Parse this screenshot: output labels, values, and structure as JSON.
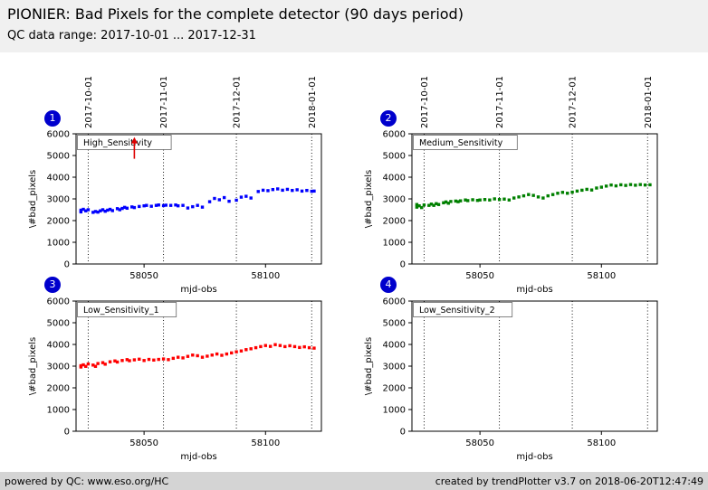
{
  "header": {
    "title": "PIONIER: Bad Pixels for the complete detector (90 days period)",
    "subtitle": "QC data range: 2017-10-01 ... 2017-12-31"
  },
  "footer": {
    "left": "powered by QC: www.eso.org/HC",
    "right": "created by trendPlotter v3.7 on 2018-06-20T12:47:49"
  },
  "chart_data": {
    "type": "scatter",
    "xlabel": "mjd-obs",
    "ylabel": "\\#bad_pixels",
    "xlim": [
      58022,
      58123
    ],
    "ylim": [
      0,
      6000
    ],
    "xticks": [
      58050,
      58100
    ],
    "yticks": [
      0,
      1000,
      2000,
      3000,
      4000,
      5000,
      6000
    ],
    "grid": "vertical dotted lines at month boundaries",
    "legend_position": "upper-left inside box",
    "date_lines": [
      {
        "mjd": 58027,
        "label": "2017-10-01"
      },
      {
        "mjd": 58058,
        "label": "2017-11-01"
      },
      {
        "mjd": 58088,
        "label": "2017-12-01"
      },
      {
        "mjd": 58119,
        "label": "2018-01-01"
      }
    ],
    "panels": [
      {
        "badge": "1",
        "name": "High_Sensitivity",
        "color": "#0000ff",
        "annotation": {
          "type": "up-arrow",
          "x": 58046,
          "y_from": 4850,
          "y_to": 5850,
          "color": "#dd0000"
        },
        "points": [
          [
            58024,
            2480
          ],
          [
            58024,
            2400
          ],
          [
            58025,
            2520
          ],
          [
            58026,
            2450
          ],
          [
            58027,
            2500
          ],
          [
            58029,
            2380
          ],
          [
            58030,
            2420
          ],
          [
            58031,
            2390
          ],
          [
            58032,
            2450
          ],
          [
            58033,
            2500
          ],
          [
            58034,
            2430
          ],
          [
            58035,
            2480
          ],
          [
            58036,
            2520
          ],
          [
            58037,
            2460
          ],
          [
            58039,
            2550
          ],
          [
            58040,
            2500
          ],
          [
            58041,
            2560
          ],
          [
            58042,
            2610
          ],
          [
            58043,
            2570
          ],
          [
            58045,
            2630
          ],
          [
            58046,
            2600
          ],
          [
            58048,
            2650
          ],
          [
            58050,
            2680
          ],
          [
            58051,
            2700
          ],
          [
            58053,
            2660
          ],
          [
            58055,
            2700
          ],
          [
            58056,
            2720
          ],
          [
            58058,
            2690
          ],
          [
            58059,
            2710
          ],
          [
            58061,
            2700
          ],
          [
            58063,
            2720
          ],
          [
            58064,
            2680
          ],
          [
            58066,
            2700
          ],
          [
            58068,
            2580
          ],
          [
            58070,
            2640
          ],
          [
            58072,
            2700
          ],
          [
            58074,
            2620
          ],
          [
            58077,
            2870
          ],
          [
            58079,
            3020
          ],
          [
            58081,
            2960
          ],
          [
            58083,
            3060
          ],
          [
            58085,
            2890
          ],
          [
            58088,
            2940
          ],
          [
            58090,
            3080
          ],
          [
            58092,
            3120
          ],
          [
            58094,
            3040
          ],
          [
            58097,
            3340
          ],
          [
            58099,
            3400
          ],
          [
            58101,
            3380
          ],
          [
            58103,
            3430
          ],
          [
            58105,
            3460
          ],
          [
            58107,
            3400
          ],
          [
            58109,
            3440
          ],
          [
            58111,
            3390
          ],
          [
            58113,
            3420
          ],
          [
            58115,
            3360
          ],
          [
            58117,
            3390
          ],
          [
            58119,
            3350
          ],
          [
            58120,
            3360
          ]
        ]
      },
      {
        "badge": "2",
        "name": "Medium_Sensitivity",
        "color": "#008000",
        "annotation": null,
        "points": [
          [
            58024,
            2620
          ],
          [
            58024,
            2740
          ],
          [
            58025,
            2680
          ],
          [
            58026,
            2600
          ],
          [
            58027,
            2720
          ],
          [
            58029,
            2700
          ],
          [
            58030,
            2760
          ],
          [
            58031,
            2700
          ],
          [
            58032,
            2780
          ],
          [
            58033,
            2740
          ],
          [
            58035,
            2820
          ],
          [
            58036,
            2860
          ],
          [
            58037,
            2800
          ],
          [
            58038,
            2880
          ],
          [
            58040,
            2900
          ],
          [
            58041,
            2870
          ],
          [
            58042,
            2910
          ],
          [
            58044,
            2950
          ],
          [
            58045,
            2920
          ],
          [
            58047,
            2960
          ],
          [
            58049,
            2930
          ],
          [
            58050,
            2950
          ],
          [
            58052,
            2970
          ],
          [
            58054,
            2950
          ],
          [
            58056,
            3000
          ],
          [
            58058,
            2970
          ],
          [
            58060,
            2990
          ],
          [
            58062,
            2950
          ],
          [
            58064,
            3040
          ],
          [
            58066,
            3090
          ],
          [
            58068,
            3140
          ],
          [
            58070,
            3200
          ],
          [
            58072,
            3160
          ],
          [
            58074,
            3090
          ],
          [
            58076,
            3040
          ],
          [
            58078,
            3140
          ],
          [
            58080,
            3200
          ],
          [
            58082,
            3260
          ],
          [
            58084,
            3300
          ],
          [
            58086,
            3260
          ],
          [
            58088,
            3310
          ],
          [
            58090,
            3360
          ],
          [
            58092,
            3400
          ],
          [
            58094,
            3440
          ],
          [
            58096,
            3410
          ],
          [
            58098,
            3500
          ],
          [
            58100,
            3540
          ],
          [
            58102,
            3590
          ],
          [
            58104,
            3640
          ],
          [
            58106,
            3600
          ],
          [
            58108,
            3650
          ],
          [
            58110,
            3620
          ],
          [
            58112,
            3660
          ],
          [
            58114,
            3630
          ],
          [
            58116,
            3660
          ],
          [
            58118,
            3640
          ],
          [
            58120,
            3650
          ]
        ]
      },
      {
        "badge": "3",
        "name": "Low_Sensitivity_1",
        "color": "#ff0000",
        "annotation": null,
        "points": [
          [
            58024,
            3020
          ],
          [
            58024,
            2960
          ],
          [
            58025,
            3060
          ],
          [
            58026,
            2990
          ],
          [
            58027,
            3100
          ],
          [
            58029,
            3050
          ],
          [
            58030,
            2990
          ],
          [
            58031,
            3120
          ],
          [
            58033,
            3160
          ],
          [
            58034,
            3090
          ],
          [
            58036,
            3200
          ],
          [
            58038,
            3240
          ],
          [
            58039,
            3190
          ],
          [
            58041,
            3260
          ],
          [
            58043,
            3300
          ],
          [
            58044,
            3250
          ],
          [
            58046,
            3290
          ],
          [
            58048,
            3320
          ],
          [
            58050,
            3260
          ],
          [
            58052,
            3310
          ],
          [
            58054,
            3280
          ],
          [
            58056,
            3310
          ],
          [
            58058,
            3330
          ],
          [
            58060,
            3300
          ],
          [
            58062,
            3360
          ],
          [
            58064,
            3410
          ],
          [
            58066,
            3380
          ],
          [
            58068,
            3450
          ],
          [
            58070,
            3510
          ],
          [
            58072,
            3480
          ],
          [
            58074,
            3410
          ],
          [
            58076,
            3460
          ],
          [
            58078,
            3510
          ],
          [
            58080,
            3560
          ],
          [
            58082,
            3500
          ],
          [
            58084,
            3560
          ],
          [
            58086,
            3610
          ],
          [
            58088,
            3660
          ],
          [
            58090,
            3700
          ],
          [
            58092,
            3760
          ],
          [
            58094,
            3800
          ],
          [
            58096,
            3850
          ],
          [
            58098,
            3900
          ],
          [
            58100,
            3950
          ],
          [
            58102,
            3910
          ],
          [
            58104,
            3990
          ],
          [
            58106,
            3950
          ],
          [
            58108,
            3900
          ],
          [
            58110,
            3940
          ],
          [
            58112,
            3900
          ],
          [
            58114,
            3860
          ],
          [
            58116,
            3890
          ],
          [
            58118,
            3850
          ],
          [
            58120,
            3830
          ]
        ]
      },
      {
        "badge": "4",
        "name": "Low_Sensitivity_2",
        "color": "#0000ff",
        "annotation": null,
        "points": []
      }
    ]
  }
}
